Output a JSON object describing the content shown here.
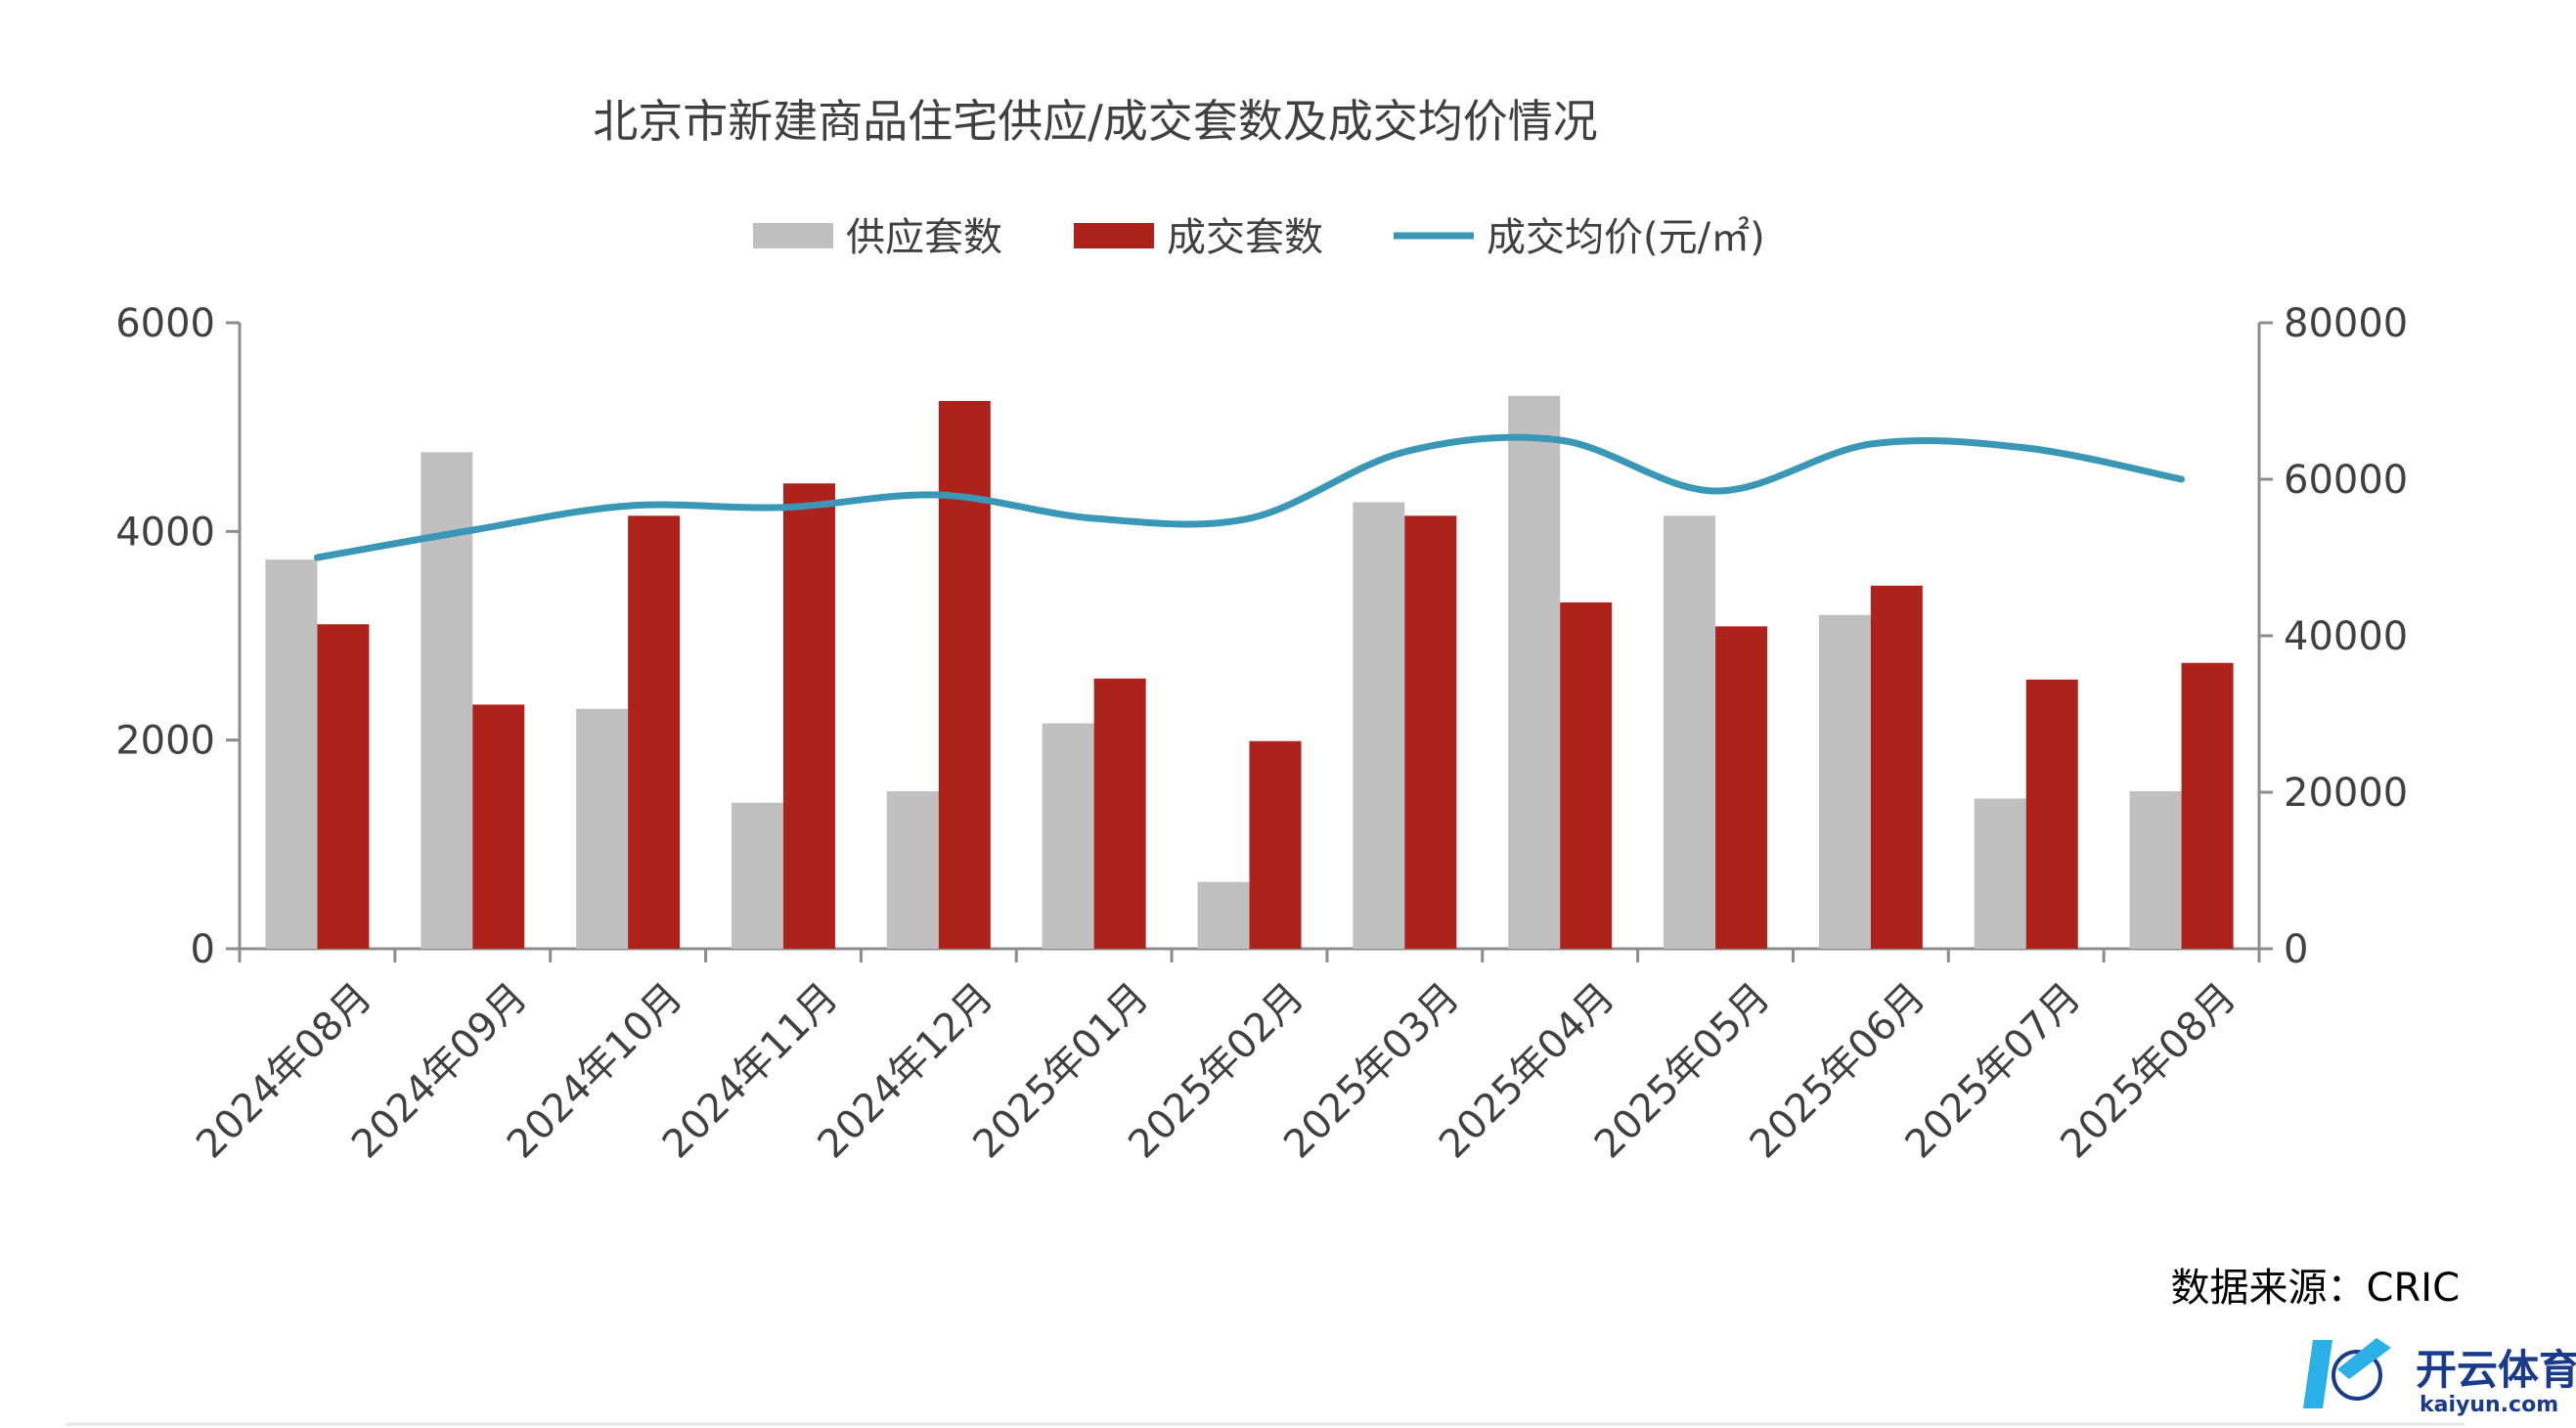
{
  "chart_data": {
    "type": "bar",
    "title": "北京市新建商品住宅供应/成交套数及成交均价情况",
    "categories": [
      "2024年08月",
      "2024年09月",
      "2024年10月",
      "2024年11月",
      "2024年12月",
      "2025年01月",
      "2025年02月",
      "2025年03月",
      "2025年04月",
      "2025年05月",
      "2025年06月",
      "2025年07月",
      "2025年08月"
    ],
    "series": [
      {
        "name": "供应套数",
        "type": "bar",
        "axis": "left",
        "color": "#c0c0c0",
        "values": [
          3730,
          4760,
          2300,
          1400,
          1510,
          2160,
          640,
          4280,
          5300,
          4150,
          3200,
          1440,
          1510
        ]
      },
      {
        "name": "成交套数",
        "type": "bar",
        "axis": "left",
        "color": "#ae221c",
        "values": [
          3110,
          2340,
          4150,
          4460,
          5250,
          2590,
          1990,
          4150,
          3320,
          3090,
          3480,
          2580,
          2740
        ]
      },
      {
        "name": "成交均价(元/㎡)",
        "type": "line",
        "axis": "right",
        "color": "#3a97b6",
        "values": [
          50000,
          53500,
          56600,
          56400,
          58000,
          55000,
          55000,
          63500,
          65000,
          58500,
          64500,
          64000,
          60000
        ]
      }
    ],
    "y_left": {
      "min": 0,
      "max": 6000,
      "ticks": [
        0,
        2000,
        4000,
        6000
      ]
    },
    "y_right": {
      "min": 0,
      "max": 80000,
      "ticks": [
        0,
        20000,
        40000,
        60000,
        80000
      ]
    },
    "legend_position": "top"
  },
  "source_text": "数据来源：CRIC",
  "watermark": {
    "brand": "开云体育",
    "url": "kaiyun.com"
  }
}
